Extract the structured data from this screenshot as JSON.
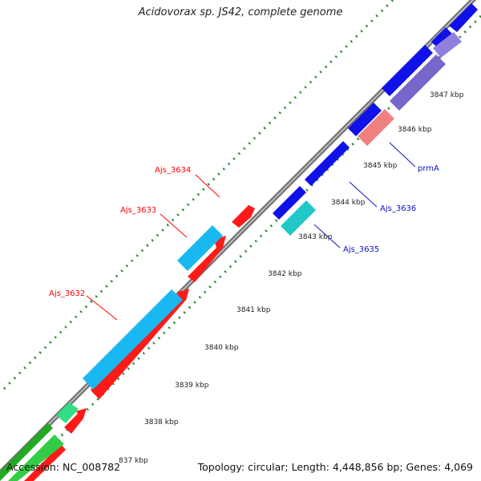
{
  "title": "Acidovorax sp. JS42, complete genome",
  "footer": {
    "accession": "Accession: NC_008782",
    "summary": "Topology: circular; Length: 4,448,856 bp; Genes: 4,069"
  },
  "colors": {
    "backbone": "#8c8c8c",
    "tick_dots": "#2e8b2e",
    "forward_label": "#ff0000",
    "reverse_label": "#1010c8"
  },
  "ticks": [
    "837 kbp",
    "3838 kbp",
    "3839 kbp",
    "3840 kbp",
    "3841 kbp",
    "3842 kbp",
    "3843 kbp",
    "3844 kbp",
    "3845 kbp",
    "3846 kbp",
    "3847 kbp"
  ],
  "gene_labels": [
    {
      "text": "Ajs_3634",
      "color": "#ff0000"
    },
    {
      "text": "Ajs_3633",
      "color": "#ff0000"
    },
    {
      "text": "Ajs_3632",
      "color": "#ff0000"
    },
    {
      "text": "prmA",
      "color": "#1010c8"
    },
    {
      "text": "Ajs_3636",
      "color": "#1010c8"
    },
    {
      "text": "Ajs_3635",
      "color": "#1010c8"
    }
  ]
}
